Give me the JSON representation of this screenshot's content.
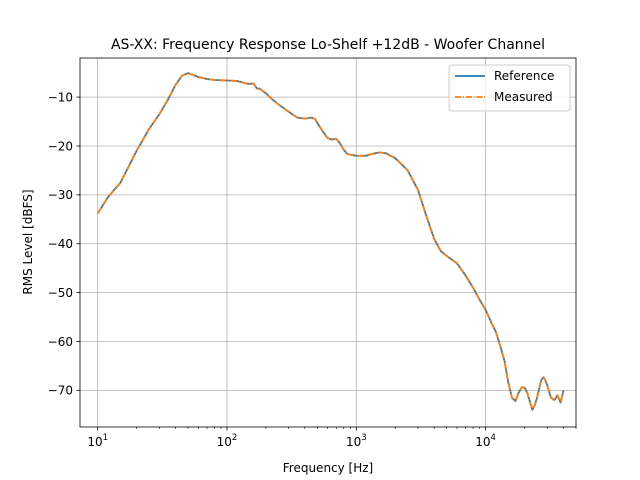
{
  "chart_data": {
    "type": "line",
    "title": "AS-XX: Frequency Response Lo-Shelf +12dB - Woofer Channel",
    "xlabel": "Frequency [Hz]",
    "ylabel": "RMS Level [dBFS]",
    "xscale": "log",
    "xlim": [
      7.3,
      50000
    ],
    "ylim": [
      -77.5,
      -2.0
    ],
    "xticks": [
      {
        "value": 10,
        "base": "10",
        "exp": "1"
      },
      {
        "value": 100,
        "base": "10",
        "exp": "2"
      },
      {
        "value": 1000,
        "base": "10",
        "exp": "3"
      },
      {
        "value": 10000,
        "base": "10",
        "exp": "4"
      }
    ],
    "yticks": [
      {
        "value": -10,
        "label": "−10"
      },
      {
        "value": -20,
        "label": "−20"
      },
      {
        "value": -30,
        "label": "−30"
      },
      {
        "value": -40,
        "label": "−40"
      },
      {
        "value": -50,
        "label": "−50"
      },
      {
        "value": -60,
        "label": "−60"
      },
      {
        "value": -70,
        "label": "−70"
      }
    ],
    "grid": true,
    "legend_position": "top-right",
    "series": [
      {
        "name": "Reference",
        "color": "#1f77b4",
        "style": "solid",
        "x": [
          10,
          12,
          15,
          20,
          25,
          30,
          35,
          40,
          45,
          50,
          55,
          60,
          70,
          80,
          100,
          120,
          140,
          150,
          160,
          170,
          180,
          190,
          200,
          220,
          250,
          300,
          350,
          400,
          450,
          480,
          500,
          550,
          600,
          650,
          700,
          750,
          800,
          850,
          900,
          1000,
          1100,
          1200,
          1300,
          1500,
          1700,
          2000,
          2500,
          3000,
          3500,
          4000,
          4500,
          5000,
          6000,
          7000,
          8000,
          9000,
          10000,
          11000,
          12000,
          13000,
          14000,
          15000,
          16000,
          17000,
          18000,
          19000,
          20000,
          21000,
          22000,
          23000,
          24000,
          25000,
          26000,
          27000,
          28000,
          29000,
          30000,
          32000,
          34000,
          36000,
          38000,
          40000
        ],
        "values": [
          -33.8,
          -30.5,
          -27.5,
          -21.0,
          -16.5,
          -13.5,
          -10.5,
          -7.5,
          -5.6,
          -5.1,
          -5.5,
          -5.9,
          -6.3,
          -6.5,
          -6.6,
          -6.7,
          -7.2,
          -7.3,
          -7.2,
          -8.2,
          -8.3,
          -8.8,
          -9.2,
          -10.3,
          -11.5,
          -13.0,
          -14.2,
          -14.4,
          -14.2,
          -14.5,
          -15.3,
          -17.0,
          -18.4,
          -18.7,
          -18.5,
          -19.5,
          -20.8,
          -21.6,
          -21.8,
          -22.0,
          -22.0,
          -22.0,
          -21.7,
          -21.3,
          -21.5,
          -22.5,
          -25.0,
          -29.0,
          -34.5,
          -39.0,
          -41.5,
          -42.5,
          -44.0,
          -46.5,
          -49.0,
          -51.5,
          -53.5,
          -56.0,
          -58.0,
          -61.0,
          -64.0,
          -68.5,
          -71.5,
          -72.2,
          -70.5,
          -69.4,
          -69.4,
          -70.5,
          -72.3,
          -74.0,
          -73.0,
          -71.5,
          -69.5,
          -67.8,
          -67.3,
          -68.0,
          -69.0,
          -71.5,
          -72.0,
          -71.0,
          -72.5,
          -70.0
        ]
      },
      {
        "name": "Measured",
        "color": "#ff7f0e",
        "style": "dashdot",
        "x": [
          10,
          12,
          15,
          20,
          25,
          30,
          35,
          40,
          45,
          50,
          55,
          60,
          70,
          80,
          100,
          120,
          140,
          150,
          160,
          170,
          180,
          190,
          200,
          220,
          250,
          300,
          350,
          400,
          450,
          480,
          500,
          550,
          600,
          650,
          700,
          750,
          800,
          850,
          900,
          1000,
          1100,
          1200,
          1300,
          1500,
          1700,
          2000,
          2500,
          3000,
          3500,
          4000,
          4500,
          5000,
          6000,
          7000,
          8000,
          9000,
          10000,
          11000,
          12000,
          13000,
          14000,
          15000,
          16000,
          17000,
          18000,
          19000,
          20000,
          21000,
          22000,
          23000,
          24000,
          25000,
          26000,
          27000,
          28000,
          29000,
          30000,
          32000,
          34000,
          36000,
          38000,
          40000
        ],
        "values": [
          -33.8,
          -30.5,
          -27.5,
          -21.0,
          -16.5,
          -13.5,
          -10.5,
          -7.5,
          -5.6,
          -5.1,
          -5.5,
          -5.9,
          -6.3,
          -6.5,
          -6.6,
          -6.7,
          -7.2,
          -7.3,
          -7.2,
          -8.2,
          -8.3,
          -8.8,
          -9.2,
          -10.3,
          -11.5,
          -13.0,
          -14.2,
          -14.4,
          -14.2,
          -14.5,
          -15.3,
          -17.0,
          -18.4,
          -18.7,
          -18.5,
          -19.5,
          -20.8,
          -21.6,
          -21.8,
          -22.0,
          -22.0,
          -22.0,
          -21.7,
          -21.3,
          -21.5,
          -22.5,
          -25.0,
          -29.0,
          -34.5,
          -39.0,
          -41.5,
          -42.5,
          -44.0,
          -46.5,
          -49.0,
          -51.5,
          -53.5,
          -56.0,
          -58.0,
          -61.0,
          -64.0,
          -68.5,
          -71.5,
          -72.2,
          -70.5,
          -69.4,
          -69.4,
          -70.5,
          -72.3,
          -74.0,
          -73.0,
          -71.5,
          -69.5,
          -67.8,
          -67.3,
          -68.0,
          -69.0,
          -71.5,
          -72.0,
          -71.0,
          -72.5,
          -70.0
        ]
      }
    ]
  }
}
